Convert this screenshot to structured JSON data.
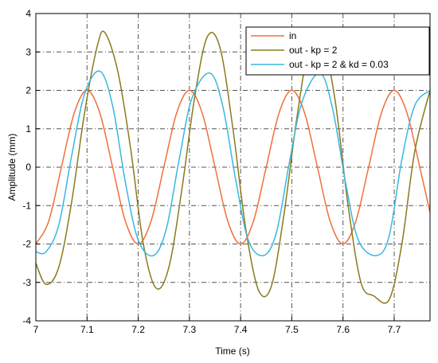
{
  "chart_data": {
    "type": "line",
    "title": "",
    "xlabel": "Time (s)",
    "ylabel": "Amplitude (mm)",
    "xlim": [
      7,
      7.77
    ],
    "ylim": [
      -4,
      4
    ],
    "x_ticks": [
      "7",
      "7.1",
      "7.2",
      "7.3",
      "7.4",
      "7.5",
      "7.6",
      "7.7"
    ],
    "y_ticks": [
      "4",
      "3",
      "2",
      "1",
      "0",
      "-1",
      "-2",
      "-3",
      "-4"
    ],
    "grid": true,
    "grid_style": "dash-dot",
    "legend_position": "top-right",
    "series": [
      {
        "name": "in",
        "color": "#f0703c",
        "x": [
          7.0,
          7.025,
          7.05,
          7.075,
          7.1,
          7.125,
          7.15,
          7.175,
          7.2,
          7.225,
          7.25,
          7.275,
          7.3,
          7.325,
          7.35,
          7.375,
          7.4,
          7.425,
          7.45,
          7.475,
          7.5,
          7.525,
          7.55,
          7.575,
          7.6,
          7.625,
          7.65,
          7.675,
          7.7,
          7.725,
          7.75,
          7.77
        ],
        "y": [
          -2.0,
          -1.41,
          0.0,
          1.41,
          2.0,
          1.41,
          0.0,
          -1.41,
          -2.0,
          -1.41,
          0.0,
          1.41,
          2.0,
          1.41,
          0.0,
          -1.41,
          -2.0,
          -1.41,
          0.0,
          1.41,
          2.0,
          1.41,
          0.0,
          -1.41,
          -2.0,
          -1.41,
          0.0,
          1.41,
          2.0,
          1.41,
          0.0,
          -1.18
        ]
      },
      {
        "name": "out - kp = 2",
        "color": "#8a7a1c",
        "x": [
          7.0,
          7.02,
          7.045,
          7.07,
          7.095,
          7.12,
          7.135,
          7.16,
          7.185,
          7.21,
          7.235,
          7.26,
          7.285,
          7.31,
          7.335,
          7.36,
          7.385,
          7.41,
          7.435,
          7.46,
          7.485,
          7.51,
          7.535,
          7.56,
          7.585,
          7.61,
          7.635,
          7.66,
          7.69,
          7.715,
          7.74,
          7.77
        ],
        "y": [
          -2.5,
          -3.05,
          -2.6,
          -0.9,
          1.4,
          3.15,
          3.5,
          2.5,
          0.5,
          -2.0,
          -3.15,
          -2.6,
          -0.6,
          1.8,
          3.4,
          3.1,
          1.0,
          -1.6,
          -3.2,
          -3.1,
          -1.2,
          1.3,
          3.2,
          3.3,
          1.7,
          -1.0,
          -3.0,
          -3.35,
          -3.45,
          -2.0,
          0.4,
          2.0
        ]
      },
      {
        "name": "out - kp = 2 & kd = 0.03",
        "color": "#3ab8e0",
        "x": [
          7.0,
          7.02,
          7.045,
          7.07,
          7.095,
          7.125,
          7.15,
          7.175,
          7.2,
          7.23,
          7.255,
          7.28,
          7.305,
          7.34,
          7.365,
          7.39,
          7.415,
          7.445,
          7.47,
          7.495,
          7.52,
          7.555,
          7.58,
          7.605,
          7.63,
          7.665,
          7.69,
          7.715,
          7.74,
          7.77
        ],
        "y": [
          -2.2,
          -2.2,
          -1.5,
          0.3,
          1.9,
          2.5,
          1.6,
          -0.4,
          -1.9,
          -2.3,
          -1.6,
          0.2,
          1.8,
          2.45,
          1.6,
          -0.3,
          -1.9,
          -2.3,
          -1.7,
          0.1,
          1.7,
          2.45,
          1.5,
          -0.4,
          -1.9,
          -2.3,
          -1.8,
          0.2,
          1.6,
          2.0
        ]
      }
    ]
  }
}
